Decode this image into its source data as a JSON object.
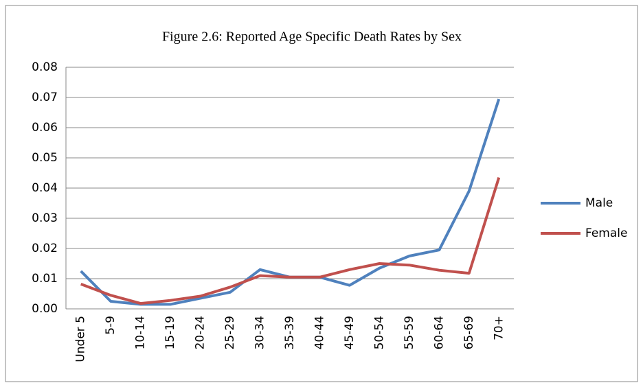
{
  "chart_data": {
    "type": "line",
    "title": "Figure 2.6: Reported  Age Specific Death Rates by Sex",
    "categories": [
      "Under 5",
      "5-9",
      "10-14",
      "15-19",
      "20-24",
      "25-29",
      "30-34",
      "35-39",
      "40-44",
      "45-49",
      "50-54",
      "55-59",
      "60-64",
      "65-69",
      "70+"
    ],
    "series": [
      {
        "name": "Male",
        "color": "#4f81bd",
        "values": [
          0.0125,
          0.0025,
          0.0015,
          0.0015,
          0.0035,
          0.0055,
          0.013,
          0.0105,
          0.0105,
          0.0078,
          0.0135,
          0.0175,
          0.0195,
          0.039,
          0.0695
        ]
      },
      {
        "name": "Female",
        "color": "#c0504d",
        "values": [
          0.0082,
          0.0045,
          0.0018,
          0.0028,
          0.0042,
          0.0072,
          0.011,
          0.0105,
          0.0105,
          0.013,
          0.015,
          0.0145,
          0.0128,
          0.0118,
          0.0435
        ]
      }
    ],
    "ylim": [
      0,
      0.08
    ],
    "yticks": [
      {
        "value": 0,
        "label": "0.00"
      },
      {
        "value": 0.01,
        "label": "0.01"
      },
      {
        "value": 0.02,
        "label": "0.02"
      },
      {
        "value": 0.03,
        "label": "0.03"
      },
      {
        "value": 0.04,
        "label": "0.04"
      },
      {
        "value": 0.05,
        "label": "0.05"
      },
      {
        "value": 0.06,
        "label": "0.06"
      },
      {
        "value": 0.07,
        "label": "0.07"
      },
      {
        "value": 0.08,
        "label": "0.08"
      }
    ],
    "grid": true,
    "legend": "right"
  }
}
